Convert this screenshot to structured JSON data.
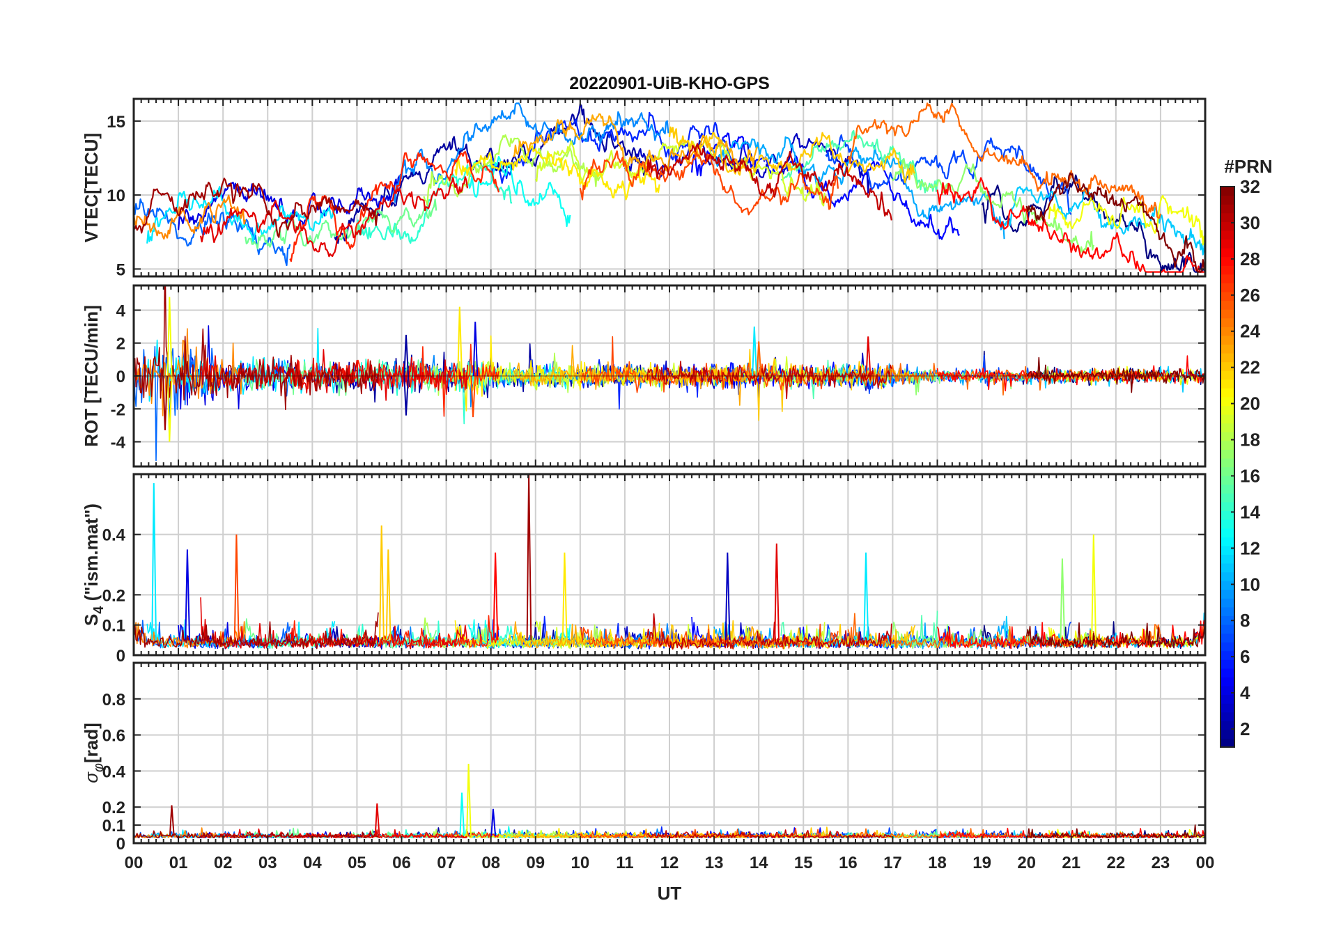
{
  "chart_data": {
    "type": "line",
    "title": "20220901-UiB-KHO-GPS",
    "xlabel": "UT",
    "x_tick_labels": [
      "00",
      "01",
      "02",
      "03",
      "04",
      "05",
      "06",
      "07",
      "08",
      "09",
      "10",
      "11",
      "12",
      "13",
      "14",
      "15",
      "16",
      "17",
      "18",
      "19",
      "20",
      "21",
      "22",
      "23",
      "00"
    ],
    "xlim": [
      0,
      24
    ],
    "grid": true,
    "colorbar": {
      "label": "#PRN",
      "range": [
        1,
        32
      ],
      "colormap": "jet",
      "ticks": [
        "2",
        "4",
        "6",
        "8",
        "10",
        "12",
        "14",
        "16",
        "18",
        "20",
        "22",
        "24",
        "26",
        "28",
        "30",
        "32"
      ]
    },
    "panels": [
      {
        "ylabel": "VTEC[TECU]",
        "ylim": [
          4.5,
          16.5
        ],
        "y_ticks": [
          5,
          10,
          15
        ],
        "y_tick_labels": [
          "5",
          "10",
          "15"
        ],
        "profile": {
          "hours": [
            0,
            1,
            2,
            3,
            4,
            5,
            6,
            7,
            8,
            9,
            10,
            11,
            12,
            13,
            14,
            15,
            16,
            17,
            18,
            19,
            20,
            21,
            22,
            23,
            24
          ],
          "vtec": [
            8.4,
            8.6,
            8.6,
            7.6,
            7.2,
            8.6,
            10.2,
            11.2,
            11.9,
            12.2,
            12.4,
            12.6,
            12.9,
            12.9,
            12.6,
            12.5,
            12.1,
            11.6,
            11.1,
            10.6,
            9.9,
            9.1,
            8.4,
            7.6,
            6.9
          ]
        }
      },
      {
        "ylabel": "ROT [TECU/min]",
        "ylim": [
          -5.5,
          5.5
        ],
        "y_ticks": [
          -4,
          -2,
          0,
          2,
          4
        ],
        "y_tick_labels": [
          "-4",
          "-2",
          "0",
          "2",
          "4"
        ]
      },
      {
        "ylabel": "S4 (\"ism.mat\")",
        "ylabel_main": "S",
        "ylabel_sub": "4",
        "ylabel_rest": " (\"ism.mat\")",
        "ylim": [
          0,
          0.6
        ],
        "y_ticks": [
          0,
          0.1,
          0.2,
          0.4
        ],
        "y_tick_labels": [
          "0",
          "0.1",
          "0.2",
          "0.4"
        ]
      },
      {
        "ylabel": "σφ[rad]",
        "ylabel_main": "σ",
        "ylabel_sub": "φ",
        "ylabel_rest": "[rad]",
        "ylim": [
          0,
          1
        ],
        "y_ticks": [
          0,
          0.1,
          0.2,
          0.4,
          0.6,
          0.8
        ],
        "y_tick_labels": [
          "0",
          "0.1",
          "0.2",
          "0.4",
          "0.6",
          "0.8"
        ]
      }
    ],
    "satellites": [
      {
        "prn": 1,
        "start": 19.0,
        "end": 24.0
      },
      {
        "prn": 2,
        "start": 4.5,
        "end": 11.5
      },
      {
        "prn": 3,
        "start": 11.0,
        "end": 16.5
      },
      {
        "prn": 4,
        "start": 1.0,
        "end": 6.0
      },
      {
        "prn": 5,
        "start": 12.5,
        "end": 18.5
      },
      {
        "prn": 6,
        "start": 8.0,
        "end": 13.8
      },
      {
        "prn": 7,
        "start": 15.5,
        "end": 21.0
      },
      {
        "prn": 8,
        "start": 0.0,
        "end": 3.5
      },
      {
        "prn": 9,
        "start": 5.8,
        "end": 12.0
      },
      {
        "prn": 10,
        "start": 13.0,
        "end": 19.5
      },
      {
        "prn": 11,
        "start": 19.5,
        "end": 24.0
      },
      {
        "prn": 12,
        "start": 0.3,
        "end": 4.5
      },
      {
        "prn": 13,
        "start": 7.5,
        "end": 9.8
      },
      {
        "prn": 14,
        "start": 5.0,
        "end": 8.5
      },
      {
        "prn": 15,
        "start": 14.5,
        "end": 18.0
      },
      {
        "prn": 16,
        "start": 2.5,
        "end": 6.8
      },
      {
        "prn": 17,
        "start": 17.0,
        "end": 21.5
      },
      {
        "prn": 18,
        "start": 6.5,
        "end": 10.5
      },
      {
        "prn": 19,
        "start": 9.0,
        "end": 15.5
      },
      {
        "prn": 20,
        "start": 20.5,
        "end": 24.0
      },
      {
        "prn": 21,
        "start": 7.2,
        "end": 11.8
      },
      {
        "prn": 22,
        "start": 12.0,
        "end": 17.5
      },
      {
        "prn": 23,
        "start": 8.5,
        "end": 14.0
      },
      {
        "prn": 24,
        "start": 0.0,
        "end": 2.5
      },
      {
        "prn": 25,
        "start": 16.0,
        "end": 23.0
      },
      {
        "prn": 26,
        "start": 10.0,
        "end": 15.8
      },
      {
        "prn": 27,
        "start": 3.5,
        "end": 8.2
      },
      {
        "prn": 28,
        "start": 18.0,
        "end": 24.0
      },
      {
        "prn": 29,
        "start": 1.5,
        "end": 7.5
      },
      {
        "prn": 30,
        "start": 11.5,
        "end": 17.0
      },
      {
        "prn": 31,
        "start": 0.0,
        "end": 5.5
      },
      {
        "prn": 32,
        "start": 20.0,
        "end": 24.0
      }
    ],
    "annotations": {
      "s4_peaks": [
        {
          "prn": 12,
          "t": 0.45,
          "s4": 0.57
        },
        {
          "prn": 4,
          "t": 1.2,
          "s4": 0.35
        },
        {
          "prn": 26,
          "t": 2.3,
          "s4": 0.4
        },
        {
          "prn": 22,
          "t": 5.55,
          "s4": 0.43
        },
        {
          "prn": 22,
          "t": 5.7,
          "s4": 0.35
        },
        {
          "prn": 28,
          "t": 8.1,
          "s4": 0.34
        },
        {
          "prn": 31,
          "t": 8.85,
          "s4": 0.6
        },
        {
          "prn": 21,
          "t": 9.65,
          "s4": 0.34
        },
        {
          "prn": 3,
          "t": 13.3,
          "s4": 0.34
        },
        {
          "prn": 29,
          "t": 14.4,
          "s4": 0.37
        },
        {
          "prn": 12,
          "t": 16.4,
          "s4": 0.34
        },
        {
          "prn": 20,
          "t": 21.5,
          "s4": 0.4
        },
        {
          "prn": 17,
          "t": 20.8,
          "s4": 0.32
        }
      ],
      "rot_spikes": [
        {
          "prn": 20,
          "t": 0.8,
          "rot": 4.8
        },
        {
          "prn": 20,
          "t": 0.8,
          "rot": -4.0
        },
        {
          "prn": 31,
          "t": 0.7,
          "rot": -3.3
        },
        {
          "prn": 21,
          "t": 7.3,
          "rot": 4.2
        },
        {
          "prn": 4,
          "t": 7.65,
          "rot": 3.3
        },
        {
          "prn": 2,
          "t": 6.1,
          "rot": 2.5
        },
        {
          "prn": 2,
          "t": 6.1,
          "rot": -2.4
        },
        {
          "prn": 12,
          "t": 13.9,
          "rot": 3.0
        },
        {
          "prn": 25,
          "t": 14.0,
          "rot": 2.1
        },
        {
          "prn": 29,
          "t": 16.45,
          "rot": 2.4
        },
        {
          "prn": 26,
          "t": 7.6,
          "rot": -2.5
        }
      ],
      "phase_peaks": [
        {
          "prn": 20,
          "t": 7.5,
          "sig": 0.44
        },
        {
          "prn": 13,
          "t": 7.35,
          "sig": 0.28
        },
        {
          "prn": 29,
          "t": 5.45,
          "sig": 0.22
        },
        {
          "prn": 31,
          "t": 0.85,
          "sig": 0.21
        },
        {
          "prn": 4,
          "t": 8.05,
          "sig": 0.19
        }
      ]
    }
  }
}
